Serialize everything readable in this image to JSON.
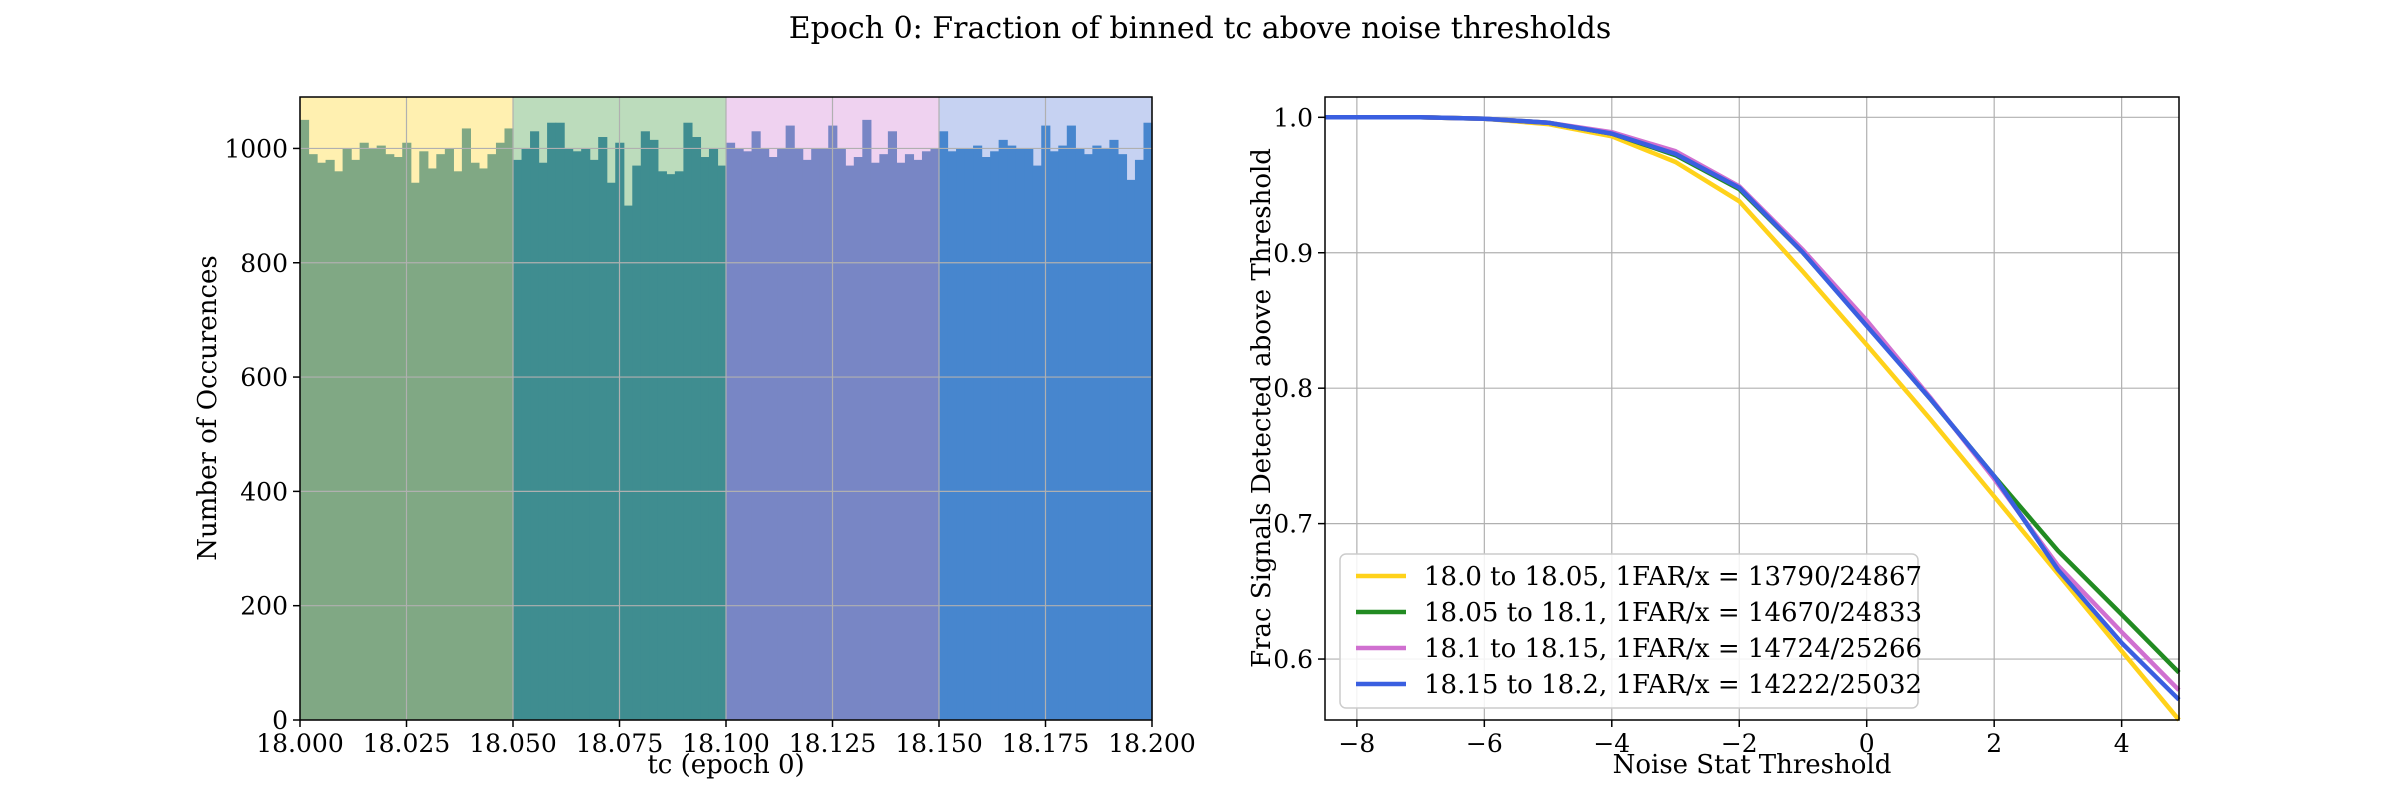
{
  "title": "Epoch 0: Fraction of binned tc above noise thresholds",
  "chart_data": [
    {
      "type": "bar",
      "subtype": "histogram",
      "xlabel": "tc (epoch 0)",
      "ylabel": "Number of Occurences",
      "xlim": [
        18.0,
        18.2
      ],
      "ylim": [
        0,
        1090
      ],
      "xticks": [
        "18.000",
        "18.025",
        "18.050",
        "18.075",
        "18.100",
        "18.125",
        "18.150",
        "18.175",
        "18.200"
      ],
      "yticks": [
        "0",
        "200",
        "400",
        "600",
        "800",
        "1000"
      ],
      "grid": true,
      "bin_width": 0.002,
      "shaded_ranges": [
        {
          "range": [
            18.0,
            18.05
          ],
          "color": "#fff0b0"
        },
        {
          "range": [
            18.05,
            18.1
          ],
          "color": "#bcdcbc"
        },
        {
          "range": [
            18.1,
            18.15
          ],
          "color": "#efd2f0"
        },
        {
          "range": [
            18.15,
            18.2
          ],
          "color": "#c6d2f2"
        }
      ],
      "series": [
        {
          "range": [
            18.0,
            18.05
          ],
          "color": "#80a884",
          "values": [
            1050,
            990,
            975,
            980,
            960,
            1000,
            980,
            1010,
            1000,
            1005,
            990,
            985,
            1010,
            940,
            995,
            965,
            990,
            1000,
            960,
            1035,
            975,
            965,
            990,
            1010,
            1035
          ]
        },
        {
          "range": [
            18.05,
            18.1
          ],
          "color": "#3f8d90",
          "values": [
            980,
            1000,
            1030,
            975,
            1045,
            1045,
            1000,
            995,
            1000,
            980,
            1020,
            940,
            1010,
            900,
            970,
            1030,
            1015,
            960,
            955,
            960,
            1045,
            1020,
            985,
            1000,
            970
          ]
        },
        {
          "range": [
            18.1,
            18.15
          ],
          "color": "#7886c5",
          "values": [
            1010,
            1000,
            995,
            1030,
            1000,
            985,
            1000,
            1040,
            1000,
            980,
            1000,
            1000,
            1040,
            1000,
            970,
            985,
            1050,
            975,
            990,
            1030,
            975,
            990,
            980,
            995,
            1000
          ]
        },
        {
          "range": [
            18.15,
            18.2
          ],
          "color": "#4786ce",
          "values": [
            1030,
            995,
            1000,
            1000,
            1005,
            985,
            995,
            1015,
            1005,
            1000,
            1000,
            970,
            1040,
            995,
            1005,
            1040,
            1000,
            990,
            1005,
            1000,
            1015,
            990,
            945,
            980,
            1045
          ]
        }
      ]
    },
    {
      "type": "line",
      "xlabel": "Noise Stat Threshold",
      "ylabel": "Frac Signals Detected above Threshold",
      "xlim": [
        -8.5,
        4.9
      ],
      "ylim": [
        0.555,
        1.015
      ],
      "xticks": [
        -8,
        -6,
        -4,
        -2,
        0,
        2,
        4
      ],
      "xtick_labels": [
        "−8",
        "−6",
        "−4",
        "−2",
        "0",
        "2",
        "4"
      ],
      "yticks": [
        0.6,
        0.7,
        0.8,
        0.9,
        1.0
      ],
      "ytick_labels": [
        "0.6",
        "0.7",
        "0.8",
        "0.9",
        "1.0"
      ],
      "grid": true,
      "legend": "lower-left",
      "series": [
        {
          "name": "18.0 to 18.05, 1FAR/x = 13790/24867",
          "color": "#ffd21a",
          "x": [
            -8.5,
            -7,
            -6,
            -5,
            -4,
            -3,
            -2,
            -1,
            0,
            1,
            2,
            3,
            4,
            4.9
          ],
          "y": [
            1.0,
            1.0,
            0.999,
            0.995,
            0.986,
            0.967,
            0.938,
            0.886,
            0.832,
            0.777,
            0.72,
            0.663,
            0.606,
            0.555
          ]
        },
        {
          "name": "18.05 to 18.1, 1FAR/x = 14670/24833",
          "color": "#228b22",
          "x": [
            -8.5,
            -7,
            -6,
            -5,
            -4,
            -3,
            -2,
            -1,
            0,
            1,
            2,
            3,
            4,
            4.9
          ],
          "y": [
            1.0,
            1.0,
            0.999,
            0.996,
            0.988,
            0.972,
            0.947,
            0.9,
            0.847,
            0.792,
            0.735,
            0.68,
            0.633,
            0.59
          ]
        },
        {
          "name": "18.1 to 18.15, 1FAR/x = 14724/25266",
          "color": "#d070d0",
          "x": [
            -8.5,
            -7,
            -6,
            -5,
            -4,
            -3,
            -2,
            -1,
            0,
            1,
            2,
            3,
            4,
            4.9
          ],
          "y": [
            1.0,
            1.0,
            0.999,
            0.996,
            0.989,
            0.975,
            0.949,
            0.902,
            0.85,
            0.793,
            0.733,
            0.669,
            0.62,
            0.577
          ]
        },
        {
          "name": "18.15 to 18.2, 1FAR/x = 14222/25032",
          "color": "#3a5fe0",
          "x": [
            -8.5,
            -7,
            -6,
            -5,
            -4,
            -3,
            -2,
            -1,
            0,
            1,
            2,
            3,
            4,
            4.9
          ],
          "y": [
            1.0,
            1.0,
            0.999,
            0.996,
            0.988,
            0.973,
            0.948,
            0.9,
            0.846,
            0.792,
            0.735,
            0.666,
            0.612,
            0.57
          ]
        }
      ]
    }
  ]
}
